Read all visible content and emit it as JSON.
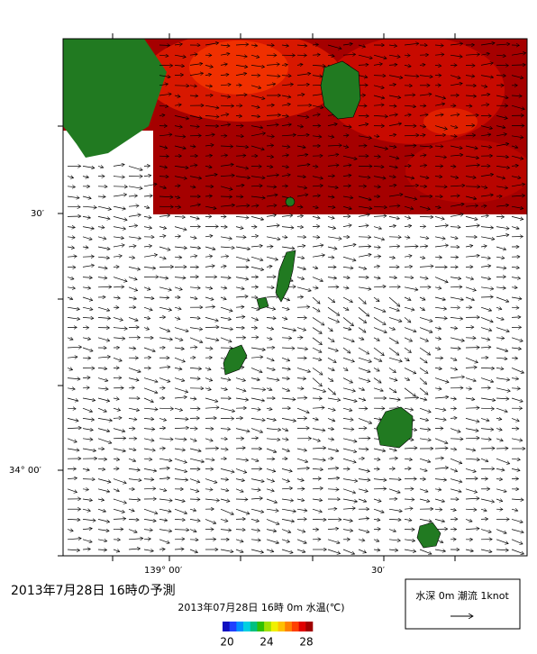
{
  "title": "2013年7月28日  16時の予測",
  "latitude_labels": [
    "30′",
    "34° 00′"
  ],
  "longitude_labels": [
    "139° 00′",
    "30′"
  ],
  "colorbar": {
    "caption": "2013年07月28日 16時 0m 水温(℃)",
    "ticks": [
      20,
      24,
      28
    ]
  },
  "legend": {
    "text": "水深 0m 潮流 1knot"
  }
}
